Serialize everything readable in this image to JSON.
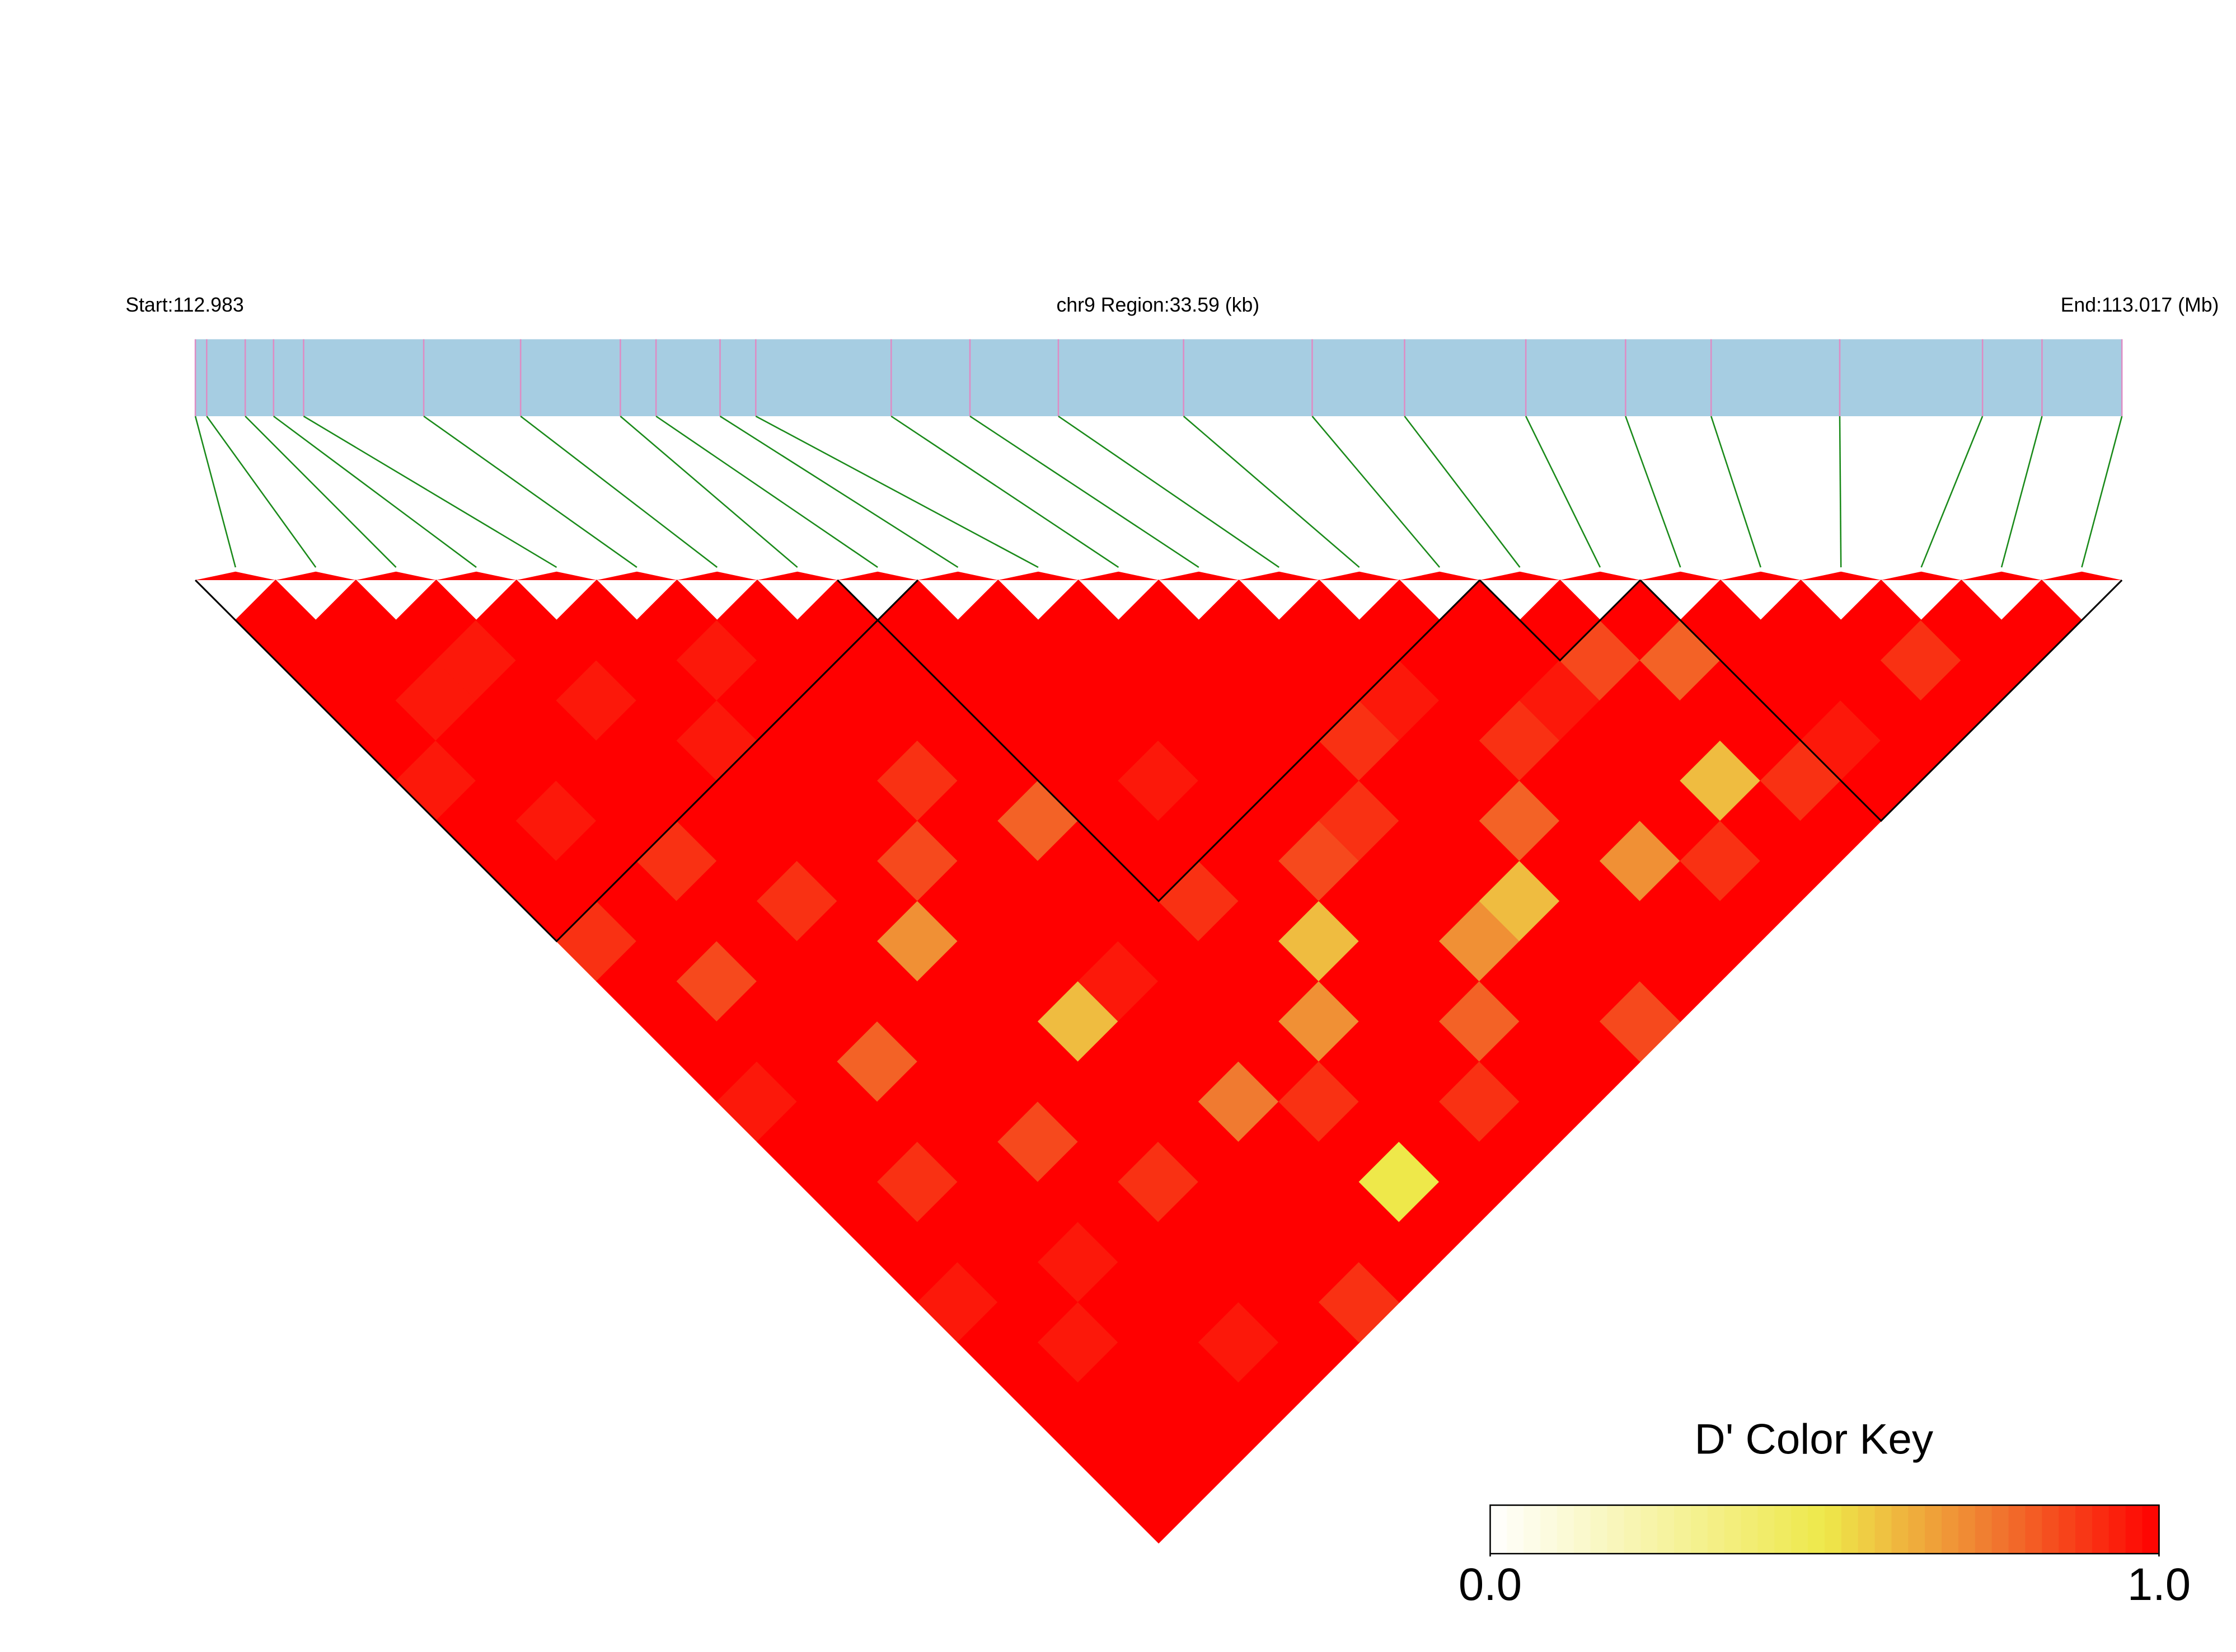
{
  "chart_data": {
    "type": "ld_heatmap",
    "start": {
      "value": 112.983,
      "label": "Start:112.983"
    },
    "end": {
      "value": 113.017,
      "label": "End:113.017 (Mb)"
    },
    "region_label": "chr9 Region:33.59 (kb)",
    "bar_color": "#a6cde2",
    "marker_color": "#de8cc4",
    "link_color": "#1a8a1a",
    "block_color": "#000000",
    "positions": [
      112.983,
      112.9832,
      112.98388,
      112.98438,
      112.98491,
      112.98703,
      112.98874,
      112.9905,
      112.99113,
      112.99226,
      112.99289,
      112.99528,
      112.99667,
      112.99823,
      113.00044,
      113.00271,
      113.00434,
      113.00648,
      113.00824,
      113.00975,
      113.01202,
      113.01454,
      113.01559,
      113.017
    ],
    "dprime": [
      [
        1,
        1,
        1,
        1,
        0.95,
        1,
        1,
        1,
        0.9,
        1,
        1,
        1,
        0.95,
        1,
        1,
        1,
        1,
        0.95,
        1,
        1,
        1,
        1,
        1
      ],
      [
        1,
        1,
        0.95,
        1,
        1,
        0.95,
        1,
        1,
        1,
        0.85,
        1,
        1,
        1,
        1,
        0.9,
        1,
        1,
        1,
        0.95,
        1,
        1,
        1
      ],
      [
        1,
        0.95,
        1,
        1,
        1,
        1,
        0.9,
        1,
        1,
        1,
        1,
        0.8,
        1,
        1,
        1,
        1,
        0.95,
        1,
        1,
        1,
        1
      ],
      [
        1,
        1,
        0.95,
        1,
        1,
        1,
        1,
        0.9,
        1,
        1,
        1,
        1,
        1,
        0.85,
        1,
        1,
        1,
        1,
        0.95,
        1
      ],
      [
        1,
        1,
        1,
        0.95,
        1,
        1,
        1,
        1,
        0.7,
        1,
        1,
        1,
        1,
        1,
        0.9,
        1,
        1,
        1,
        1
      ],
      [
        1,
        0.95,
        1,
        1,
        1,
        1,
        0.85,
        1,
        1,
        1,
        0.6,
        1,
        1,
        1,
        1,
        1,
        1,
        0.9
      ],
      [
        1,
        1,
        1,
        1,
        0.9,
        1,
        1,
        1,
        1,
        0.95,
        1,
        1,
        0.75,
        1,
        1,
        1,
        1
      ],
      [
        1,
        1,
        1,
        1,
        1,
        0.8,
        1,
        1,
        1,
        1,
        1,
        1,
        0.9,
        1,
        0.5,
        1
      ],
      [
        1,
        1,
        1,
        1,
        1,
        1,
        1,
        0.9,
        1,
        1,
        0.7,
        1,
        1,
        1,
        1
      ],
      [
        1,
        1,
        1,
        1,
        0.95,
        1,
        1,
        1,
        0.6,
        1,
        1,
        1,
        0.9,
        1
      ],
      [
        1,
        1,
        1,
        1,
        1,
        1,
        0.85,
        1,
        1,
        1,
        0.8,
        1,
        1
      ],
      [
        1,
        1,
        1,
        1,
        1,
        0.9,
        1,
        1,
        0.7,
        1,
        1,
        1
      ],
      [
        1,
        1,
        1,
        0.9,
        1,
        1,
        1,
        0.6,
        1,
        1,
        0.85
      ],
      [
        1,
        1,
        0.95,
        1,
        1,
        0.8,
        1,
        1,
        1,
        1
      ],
      [
        1,
        1,
        1,
        0.9,
        1,
        1,
        0.7,
        1,
        1
      ],
      [
        1,
        1,
        0.95,
        1,
        1,
        1,
        0.9,
        1
      ],
      [
        1,
        0.85,
        1,
        1,
        0.6,
        1,
        1
      ],
      [
        1,
        0.8,
        1,
        1,
        0.9,
        1
      ],
      [
        1,
        1,
        1,
        0.95,
        1
      ],
      [
        1,
        1,
        1,
        1
      ],
      [
        1,
        0.9,
        1
      ],
      [
        1,
        1
      ],
      [
        1
      ]
    ],
    "blocks": [
      [
        0,
        8
      ],
      [
        8,
        15
      ],
      [
        16,
        17
      ],
      [
        18,
        23
      ]
    ],
    "color_key": {
      "title": "D' Color Key",
      "stops": [
        {
          "value": 0,
          "color": "#ffffff"
        },
        {
          "value": 0.5,
          "color": "#eee84a"
        },
        {
          "value": 0.75,
          "color": "#f07a30"
        },
        {
          "value": 1,
          "color": "#ff0000"
        }
      ],
      "ticks": [
        {
          "value": 0,
          "label": "0.0"
        },
        {
          "value": 1,
          "label": "1.0"
        }
      ]
    }
  }
}
